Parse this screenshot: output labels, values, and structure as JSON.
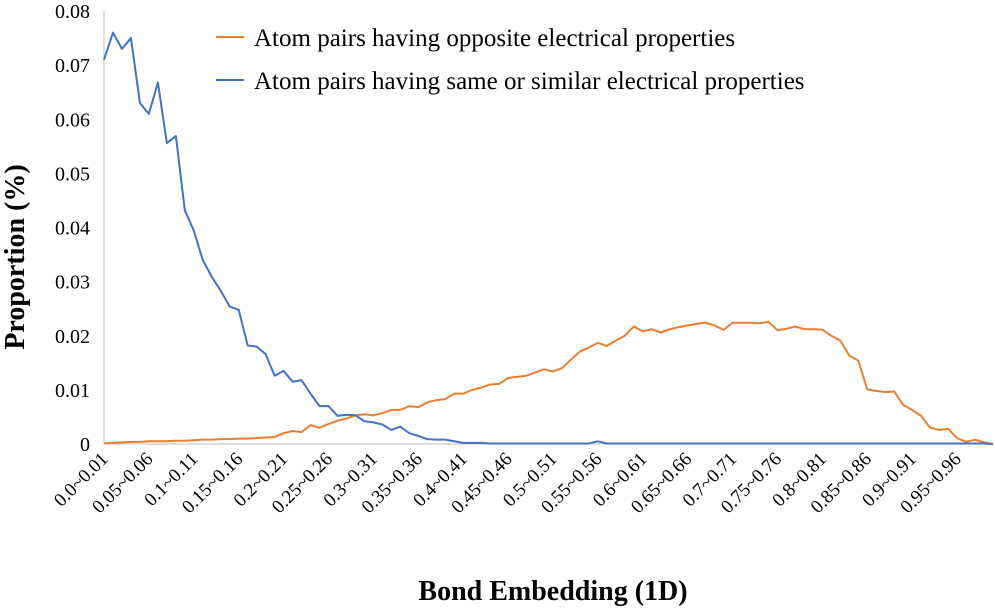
{
  "chart_data": {
    "type": "line",
    "xlabel": "Bond Embedding (1D)",
    "ylabel": "Proportion (%)",
    "ylim": [
      0,
      0.08
    ],
    "y_ticks": [
      "0",
      "0.01",
      "0.02",
      "0.03",
      "0.04",
      "0.05",
      "0.06",
      "0.07",
      "0.08"
    ],
    "grid": false,
    "legend_position": "top-right",
    "x_tick_labels": [
      "0.0~0.01",
      "0.05~0.06",
      "0.1~0.11",
      "0.15~0.16",
      "0.2~0.21",
      "0.25~0.26",
      "0.3~0.31",
      "0.35~0.36",
      "0.4~0.41",
      "0.45~0.46",
      "0.5~0.51",
      "0.55~0.56",
      "0.6~0.61",
      "0.65~0.66",
      "0.7~0.71",
      "0.75~0.76",
      "0.8~0.81",
      "0.85~0.86",
      "0.9~0.91",
      "0.95~0.96"
    ],
    "x": [
      0.0,
      0.01,
      0.02,
      0.03,
      0.04,
      0.05,
      0.06,
      0.07,
      0.08,
      0.09,
      0.1,
      0.11,
      0.12,
      0.13,
      0.14,
      0.15,
      0.16,
      0.17,
      0.18,
      0.19,
      0.2,
      0.21,
      0.22,
      0.23,
      0.24,
      0.25,
      0.26,
      0.27,
      0.28,
      0.29,
      0.3,
      0.31,
      0.32,
      0.33,
      0.34,
      0.35,
      0.36,
      0.37,
      0.38,
      0.39,
      0.4,
      0.41,
      0.42,
      0.43,
      0.44,
      0.45,
      0.46,
      0.47,
      0.48,
      0.49,
      0.5,
      0.51,
      0.52,
      0.53,
      0.54,
      0.55,
      0.56,
      0.57,
      0.58,
      0.59,
      0.6,
      0.61,
      0.62,
      0.63,
      0.64,
      0.65,
      0.66,
      0.67,
      0.68,
      0.69,
      0.7,
      0.71,
      0.72,
      0.73,
      0.74,
      0.75,
      0.76,
      0.77,
      0.78,
      0.79,
      0.8,
      0.81,
      0.82,
      0.83,
      0.84,
      0.85,
      0.86,
      0.87,
      0.88,
      0.89,
      0.9,
      0.91,
      0.92,
      0.93,
      0.94,
      0.95,
      0.96,
      0.97,
      0.98,
      0.99
    ],
    "series": [
      {
        "name": "Atom pairs having opposite electrical properties",
        "color": "#ed7d31",
        "values": [
          0.0001,
          0.0002,
          0.0003,
          0.0004,
          0.0004,
          0.0005,
          0.0005,
          0.0005,
          0.0006,
          0.0006,
          0.0007,
          0.0008,
          0.0008,
          0.0009,
          0.0009,
          0.001,
          0.001,
          0.0011,
          0.0012,
          0.0013,
          0.002,
          0.0024,
          0.0022,
          0.0035,
          0.003,
          0.0037,
          0.0043,
          0.0047,
          0.0053,
          0.0055,
          0.0053,
          0.0057,
          0.0063,
          0.0063,
          0.007,
          0.0068,
          0.0077,
          0.0081,
          0.0083,
          0.0093,
          0.0093,
          0.01,
          0.0104,
          0.011,
          0.0111,
          0.0122,
          0.0124,
          0.0126,
          0.0132,
          0.0138,
          0.0134,
          0.014,
          0.0156,
          0.0171,
          0.0178,
          0.0187,
          0.0181,
          0.0191,
          0.02,
          0.0217,
          0.0208,
          0.0212,
          0.0206,
          0.0212,
          0.0216,
          0.0219,
          0.0222,
          0.0224,
          0.0219,
          0.0211,
          0.0224,
          0.0224,
          0.0224,
          0.0223,
          0.0226,
          0.021,
          0.0213,
          0.0217,
          0.0212,
          0.0212,
          0.0211,
          0.02,
          0.0191,
          0.0163,
          0.0154,
          0.0101,
          0.0098,
          0.0096,
          0.0097,
          0.0072,
          0.0063,
          0.0052,
          0.003,
          0.0026,
          0.0028,
          0.0011,
          0.0004,
          0.0008,
          0.0003,
          0.0
        ]
      },
      {
        "name": "Atom pairs having same or similar electrical properties",
        "color": "#4472c4",
        "values": [
          0.071,
          0.076,
          0.073,
          0.075,
          0.063,
          0.061,
          0.0668,
          0.0556,
          0.0569,
          0.0432,
          0.0394,
          0.034,
          0.0309,
          0.0283,
          0.0254,
          0.0248,
          0.0182,
          0.018,
          0.0166,
          0.0126,
          0.0135,
          0.0115,
          0.0118,
          0.0093,
          0.007,
          0.007,
          0.0052,
          0.0054,
          0.0053,
          0.0042,
          0.004,
          0.0036,
          0.0026,
          0.0032,
          0.002,
          0.0015,
          0.0009,
          0.0008,
          0.0008,
          0.0005,
          0.0002,
          0.0002,
          0.0002,
          0.0001,
          0.0001,
          0.0001,
          0.0001,
          0.0001,
          0.0001,
          0.0001,
          0.0001,
          0.0001,
          0.0001,
          0.0001,
          0.0001,
          0.0005,
          0.0001,
          0.0001,
          0.0001,
          0.0001,
          0.0001,
          0.0001,
          0.0001,
          0.0001,
          0.0001,
          0.0001,
          0.0001,
          0.0001,
          0.0001,
          0.0001,
          0.0001,
          0.0001,
          0.0001,
          0.0001,
          0.0001,
          0.0001,
          0.0001,
          0.0001,
          0.0001,
          0.0001,
          0.0001,
          0.0001,
          0.0001,
          0.0001,
          0.0001,
          0.0001,
          0.0001,
          0.0001,
          0.0001,
          0.0001,
          0.0001,
          0.0001,
          0.0001,
          0.0001,
          0.0001,
          0.0001,
          0.0001,
          0.0001,
          0.0001,
          0.0
        ]
      }
    ]
  }
}
